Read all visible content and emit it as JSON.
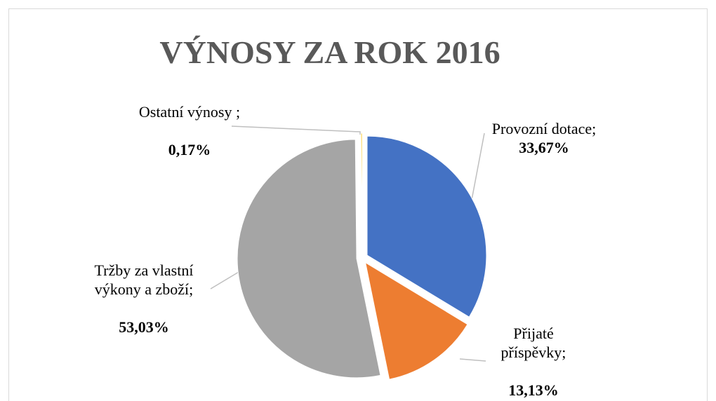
{
  "chart_data": {
    "type": "pie",
    "title": "VÝNOSY ZA ROK 2016",
    "categories": [
      "Provozní dotace;",
      "Přijaté příspěvky;",
      "Tržby za vlastní výkony a zboží;",
      "Ostatní výnosy ;"
    ],
    "values": [
      33.67,
      13.13,
      53.03,
      0.17
    ],
    "value_labels": [
      "33,67%",
      "13,13%",
      "53,03%",
      "0,17%"
    ],
    "colors": [
      "#4472c4",
      "#ed7d31",
      "#a5a5a5",
      "#ffc000"
    ]
  }
}
